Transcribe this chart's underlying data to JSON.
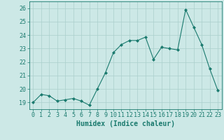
{
  "x": [
    0,
    1,
    2,
    3,
    4,
    5,
    6,
    7,
    8,
    9,
    10,
    11,
    12,
    13,
    14,
    15,
    16,
    17,
    18,
    19,
    20,
    21,
    22,
    23
  ],
  "y": [
    19.0,
    19.6,
    19.5,
    19.1,
    19.2,
    19.3,
    19.1,
    18.8,
    20.0,
    21.2,
    22.7,
    23.3,
    23.6,
    23.6,
    23.85,
    22.2,
    23.1,
    23.0,
    22.9,
    25.9,
    24.6,
    23.3,
    21.5,
    19.9
  ],
  "line_color": "#1a7a6e",
  "marker": "D",
  "marker_size": 2,
  "bg_color": "#cce8e6",
  "grid_color": "#aacfcc",
  "xlabel": "Humidex (Indice chaleur)",
  "xlabel_fontsize": 7,
  "tick_fontsize": 6,
  "ylim": [
    18.5,
    26.5
  ],
  "yticks": [
    19,
    20,
    21,
    22,
    23,
    24,
    25,
    26
  ],
  "xticks": [
    0,
    1,
    2,
    3,
    4,
    5,
    6,
    7,
    8,
    9,
    10,
    11,
    12,
    13,
    14,
    15,
    16,
    17,
    18,
    19,
    20,
    21,
    22,
    23
  ],
  "spine_color": "#1a7a6e",
  "text_color": "#1a7a6e",
  "linewidth": 0.8
}
